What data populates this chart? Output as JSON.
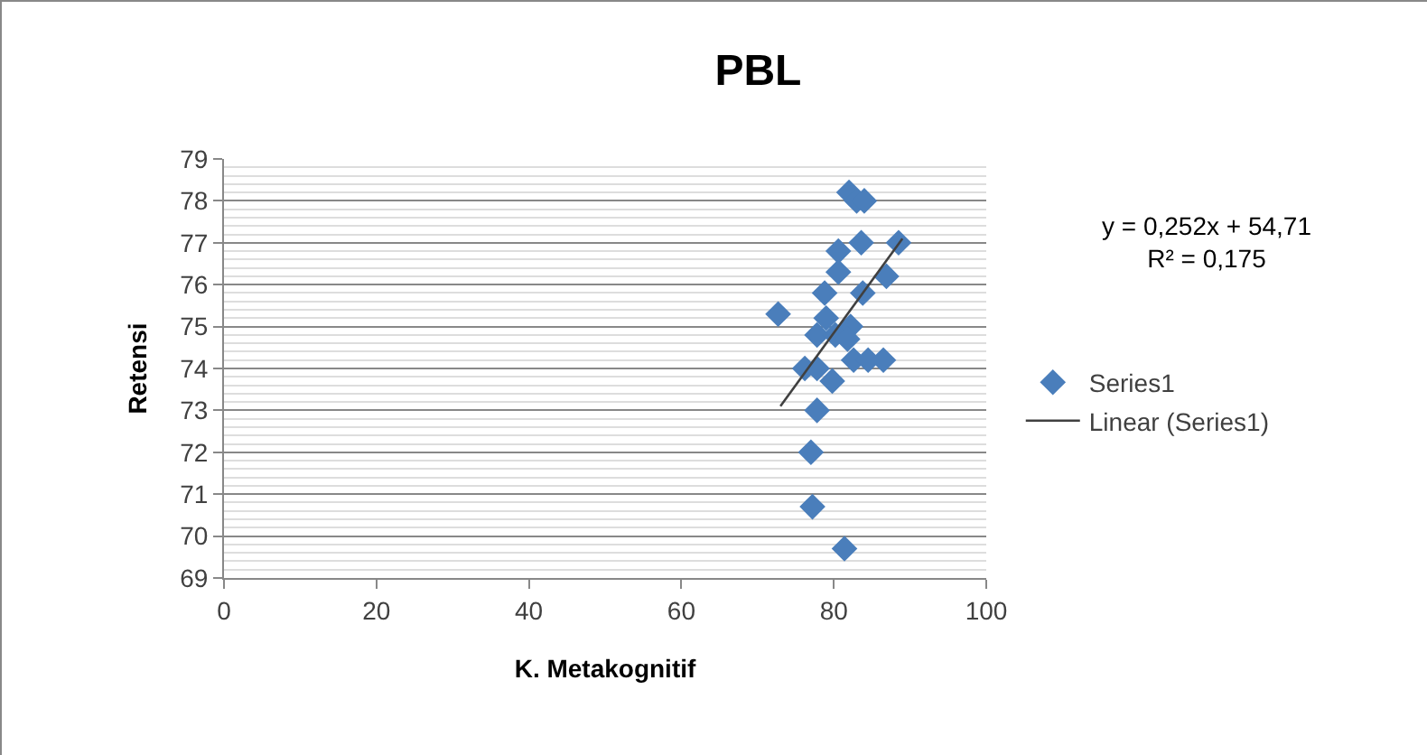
{
  "chart_data": {
    "type": "scatter",
    "title": "PBL",
    "xlabel": "K. Metakognitif",
    "ylabel": "Retensi",
    "annotations": [
      "y = 0,252x + 54,71\nR² = 0,175"
    ],
    "series": [
      {
        "name": "Series1",
        "color": "#4a7ebb",
        "marker": "diamond",
        "x": [
          72.7,
          82.0,
          83.0,
          84.0,
          83.6,
          88.5,
          80.6,
          80.6,
          83.8,
          86.9,
          78.8,
          79.0,
          82.2,
          77.8,
          80.2,
          81.8,
          76.2,
          77.8,
          79.8,
          82.6,
          84.5,
          86.5,
          77.8,
          77.0,
          77.2,
          81.4
        ],
        "values": [
          75.3,
          78.2,
          78.0,
          78.0,
          77.0,
          77.0,
          76.8,
          76.3,
          75.8,
          76.2,
          75.8,
          75.2,
          75.0,
          74.8,
          74.8,
          74.7,
          74.0,
          74.0,
          73.7,
          74.2,
          74.2,
          74.2,
          73.0,
          72.0,
          70.7,
          69.7
        ]
      },
      {
        "name": "Linear (Series1)",
        "type": "line",
        "color": "#404040",
        "marker": "none",
        "line_style": "solid",
        "x": [
          73,
          89
        ],
        "values": [
          73.1,
          77.1
        ]
      }
    ],
    "xlim": [
      0,
      100
    ],
    "xticks": [
      0,
      20,
      40,
      60,
      80,
      100
    ],
    "ylim": [
      69,
      79
    ],
    "yticks": [
      69,
      70,
      71,
      72,
      73,
      74,
      75,
      76,
      77,
      78,
      79
    ],
    "grid": "y",
    "legend": "right"
  }
}
